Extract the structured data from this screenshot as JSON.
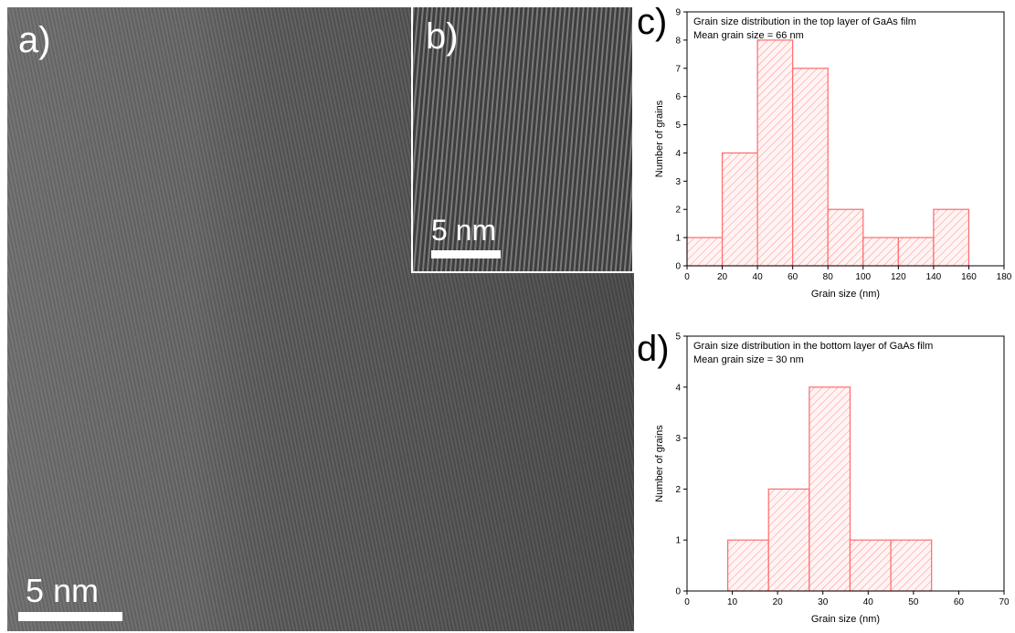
{
  "panels": {
    "a": {
      "letter": "a)",
      "scale_label": "5 nm"
    },
    "b": {
      "letter": "b)",
      "scale_label": "5 nm"
    },
    "c": {
      "letter": "c)"
    },
    "d": {
      "letter": "d)"
    }
  },
  "colors": {
    "bar": "#ff6b6b",
    "hatch": "#ff8a8a"
  },
  "chart_data": [
    {
      "type": "bar",
      "panel": "c",
      "title": "Grain size distribution in the top layer of GaAs film",
      "subtitle": "Mean grain size = 66 nm",
      "xlabel": "Grain size (nm)",
      "ylabel": "Number of grains",
      "xlim": [
        0,
        180
      ],
      "ylim": [
        0,
        9
      ],
      "xticks": [
        0,
        20,
        40,
        60,
        80,
        100,
        120,
        140,
        160,
        180
      ],
      "yticks": [
        0,
        1,
        2,
        3,
        4,
        5,
        6,
        7,
        8,
        9
      ],
      "bins": [
        {
          "from": 0,
          "to": 20,
          "value": 1
        },
        {
          "from": 20,
          "to": 40,
          "value": 4
        },
        {
          "from": 40,
          "to": 60,
          "value": 8
        },
        {
          "from": 60,
          "to": 80,
          "value": 7
        },
        {
          "from": 80,
          "to": 100,
          "value": 2
        },
        {
          "from": 100,
          "to": 120,
          "value": 1
        },
        {
          "from": 120,
          "to": 140,
          "value": 1
        },
        {
          "from": 140,
          "to": 160,
          "value": 2
        }
      ]
    },
    {
      "type": "bar",
      "panel": "d",
      "title": "Grain size distribution in the bottom layer of GaAs film",
      "subtitle": "Mean grain size = 30 nm",
      "xlabel": "Grain size (nm)",
      "ylabel": "Number of grains",
      "xlim": [
        0,
        70
      ],
      "ylim": [
        0,
        5
      ],
      "xticks": [
        0,
        10,
        20,
        30,
        40,
        50,
        60,
        70
      ],
      "yticks": [
        0,
        1,
        2,
        3,
        4,
        5
      ],
      "bins": [
        {
          "from": 9,
          "to": 18,
          "value": 1
        },
        {
          "from": 18,
          "to": 27,
          "value": 2
        },
        {
          "from": 27,
          "to": 36,
          "value": 4
        },
        {
          "from": 36,
          "to": 45,
          "value": 1
        },
        {
          "from": 45,
          "to": 54,
          "value": 1
        }
      ]
    }
  ]
}
